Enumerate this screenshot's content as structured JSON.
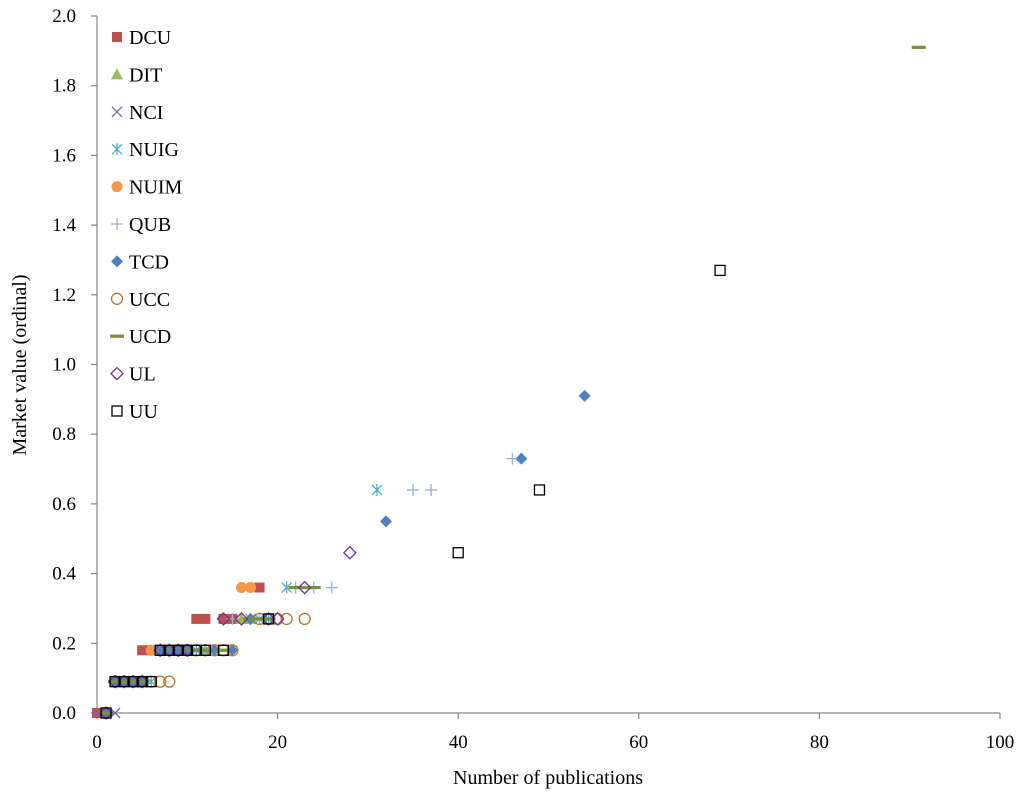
{
  "chart_data": {
    "type": "scatter",
    "title": "",
    "xlabel": "Number of publications",
    "ylabel": "Market value (ordinal)",
    "xlim": [
      0,
      100
    ],
    "ylim": [
      0,
      2.0
    ],
    "x_ticks": [
      "0",
      "20",
      "40",
      "60",
      "80",
      "100"
    ],
    "y_ticks": [
      "0.0",
      "0.2",
      "0.4",
      "0.6",
      "0.8",
      "1.0",
      "1.2",
      "1.4",
      "1.6",
      "1.8",
      "2.0"
    ],
    "grid": false,
    "legend_position": "top-left",
    "series": [
      {
        "name": "DCU",
        "marker": "square-filled",
        "color": "#C0504D",
        "points": [
          [
            0,
            0
          ],
          [
            1,
            0
          ],
          [
            2,
            0.09
          ],
          [
            3,
            0.09
          ],
          [
            4,
            0.09
          ],
          [
            5,
            0.09
          ],
          [
            5,
            0.18
          ],
          [
            6,
            0.18
          ],
          [
            7,
            0.18
          ],
          [
            8,
            0.18
          ],
          [
            10,
            0.18
          ],
          [
            11,
            0.27
          ],
          [
            12,
            0.27
          ],
          [
            14,
            0.27
          ],
          [
            15,
            0.27
          ],
          [
            18,
            0.36
          ]
        ]
      },
      {
        "name": "DIT",
        "marker": "triangle-filled",
        "color": "#9BBB59",
        "points": [
          [
            1,
            0
          ],
          [
            2,
            0.09
          ],
          [
            3,
            0.09
          ],
          [
            4,
            0.09
          ],
          [
            5,
            0.09
          ],
          [
            7,
            0.18
          ],
          [
            8,
            0.18
          ],
          [
            9,
            0.18
          ],
          [
            10,
            0.18
          ],
          [
            12,
            0.18
          ],
          [
            16,
            0.27
          ],
          [
            17,
            0.27
          ]
        ]
      },
      {
        "name": "NCI",
        "marker": "x",
        "color": "#8064A2",
        "points": [
          [
            0,
            0
          ],
          [
            1,
            0
          ],
          [
            2,
            0
          ],
          [
            2,
            0.09
          ],
          [
            3,
            0.09
          ],
          [
            4,
            0.09
          ],
          [
            5,
            0.09
          ],
          [
            8,
            0.18
          ],
          [
            9,
            0.18
          ]
        ]
      },
      {
        "name": "NUIG",
        "marker": "asterisk",
        "color": "#4BACC6",
        "points": [
          [
            1,
            0
          ],
          [
            2,
            0.09
          ],
          [
            3,
            0.09
          ],
          [
            4,
            0.09
          ],
          [
            5,
            0.09
          ],
          [
            6,
            0.09
          ],
          [
            7,
            0.18
          ],
          [
            8,
            0.18
          ],
          [
            9,
            0.18
          ],
          [
            10,
            0.18
          ],
          [
            11,
            0.18
          ],
          [
            12,
            0.18
          ],
          [
            17,
            0.27
          ],
          [
            18,
            0.27
          ],
          [
            19,
            0.27
          ],
          [
            21,
            0.36
          ],
          [
            31,
            0.64
          ]
        ]
      },
      {
        "name": "NUIM",
        "marker": "circle-filled",
        "color": "#F79646",
        "points": [
          [
            1,
            0
          ],
          [
            2,
            0.09
          ],
          [
            3,
            0.09
          ],
          [
            4,
            0.09
          ],
          [
            5,
            0.09
          ],
          [
            6,
            0.18
          ],
          [
            8,
            0.18
          ],
          [
            9,
            0.18
          ],
          [
            10,
            0.18
          ],
          [
            16,
            0.36
          ],
          [
            17,
            0.36
          ]
        ]
      },
      {
        "name": "QUB",
        "marker": "plus",
        "color": "#95B3D7",
        "points": [
          [
            1,
            0
          ],
          [
            3,
            0.09
          ],
          [
            4,
            0.09
          ],
          [
            5,
            0.09
          ],
          [
            8,
            0.18
          ],
          [
            10,
            0.18
          ],
          [
            12,
            0.18
          ],
          [
            15,
            0.27
          ],
          [
            18,
            0.27
          ],
          [
            22,
            0.36
          ],
          [
            24,
            0.36
          ],
          [
            26,
            0.36
          ],
          [
            35,
            0.64
          ],
          [
            37,
            0.64
          ],
          [
            46,
            0.73
          ]
        ]
      },
      {
        "name": "TCD",
        "marker": "diamond-filled",
        "color": "#4F81BD",
        "points": [
          [
            1,
            0
          ],
          [
            2,
            0.09
          ],
          [
            3,
            0.09
          ],
          [
            4,
            0.09
          ],
          [
            5,
            0.09
          ],
          [
            7,
            0.18
          ],
          [
            8,
            0.18
          ],
          [
            9,
            0.18
          ],
          [
            10,
            0.18
          ],
          [
            13,
            0.18
          ],
          [
            15,
            0.18
          ],
          [
            17,
            0.27
          ],
          [
            32,
            0.55
          ],
          [
            47,
            0.73
          ],
          [
            54,
            0.91
          ]
        ]
      },
      {
        "name": "UCC",
        "marker": "circle-open",
        "color": "#C0702D",
        "points": [
          [
            1,
            0
          ],
          [
            2,
            0.09
          ],
          [
            3,
            0.09
          ],
          [
            4,
            0.09
          ],
          [
            5,
            0.09
          ],
          [
            6,
            0.09
          ],
          [
            7,
            0.09
          ],
          [
            8,
            0.09
          ],
          [
            9,
            0.18
          ],
          [
            10,
            0.18
          ],
          [
            11,
            0.18
          ],
          [
            12,
            0.18
          ],
          [
            13,
            0.18
          ],
          [
            14,
            0.18
          ],
          [
            15,
            0.18
          ],
          [
            18,
            0.27
          ],
          [
            19,
            0.27
          ],
          [
            20,
            0.27
          ],
          [
            21,
            0.27
          ],
          [
            23,
            0.27
          ]
        ]
      },
      {
        "name": "UCD",
        "marker": "dash",
        "color": "#76923C",
        "points": [
          [
            1,
            0
          ],
          [
            2,
            0.09
          ],
          [
            3,
            0.09
          ],
          [
            4,
            0.09
          ],
          [
            5,
            0.09
          ],
          [
            8,
            0.18
          ],
          [
            10,
            0.18
          ],
          [
            11,
            0.18
          ],
          [
            12,
            0.18
          ],
          [
            14,
            0.18
          ],
          [
            17,
            0.27
          ],
          [
            18,
            0.27
          ],
          [
            19,
            0.27
          ],
          [
            22,
            0.36
          ],
          [
            23,
            0.36
          ],
          [
            24,
            0.36
          ],
          [
            91,
            1.91
          ]
        ]
      },
      {
        "name": "UL",
        "marker": "diamond-open",
        "color": "#7030A0",
        "points": [
          [
            1,
            0
          ],
          [
            2,
            0.09
          ],
          [
            3,
            0.09
          ],
          [
            4,
            0.09
          ],
          [
            5,
            0.09
          ],
          [
            7,
            0.18
          ],
          [
            8,
            0.18
          ],
          [
            9,
            0.18
          ],
          [
            10,
            0.18
          ],
          [
            14,
            0.27
          ],
          [
            16,
            0.27
          ],
          [
            19,
            0.27
          ],
          [
            20,
            0.27
          ],
          [
            23,
            0.36
          ],
          [
            28,
            0.46
          ]
        ]
      },
      {
        "name": "UU",
        "marker": "square-open",
        "color": "#000000",
        "points": [
          [
            1,
            0
          ],
          [
            2,
            0.09
          ],
          [
            3,
            0.09
          ],
          [
            4,
            0.09
          ],
          [
            5,
            0.09
          ],
          [
            6,
            0.09
          ],
          [
            7,
            0.18
          ],
          [
            8,
            0.18
          ],
          [
            9,
            0.18
          ],
          [
            10,
            0.18
          ],
          [
            11,
            0.18
          ],
          [
            12,
            0.18
          ],
          [
            14,
            0.18
          ],
          [
            19,
            0.27
          ],
          [
            40,
            0.46
          ],
          [
            49,
            0.64
          ],
          [
            69,
            1.27
          ]
        ]
      }
    ]
  }
}
